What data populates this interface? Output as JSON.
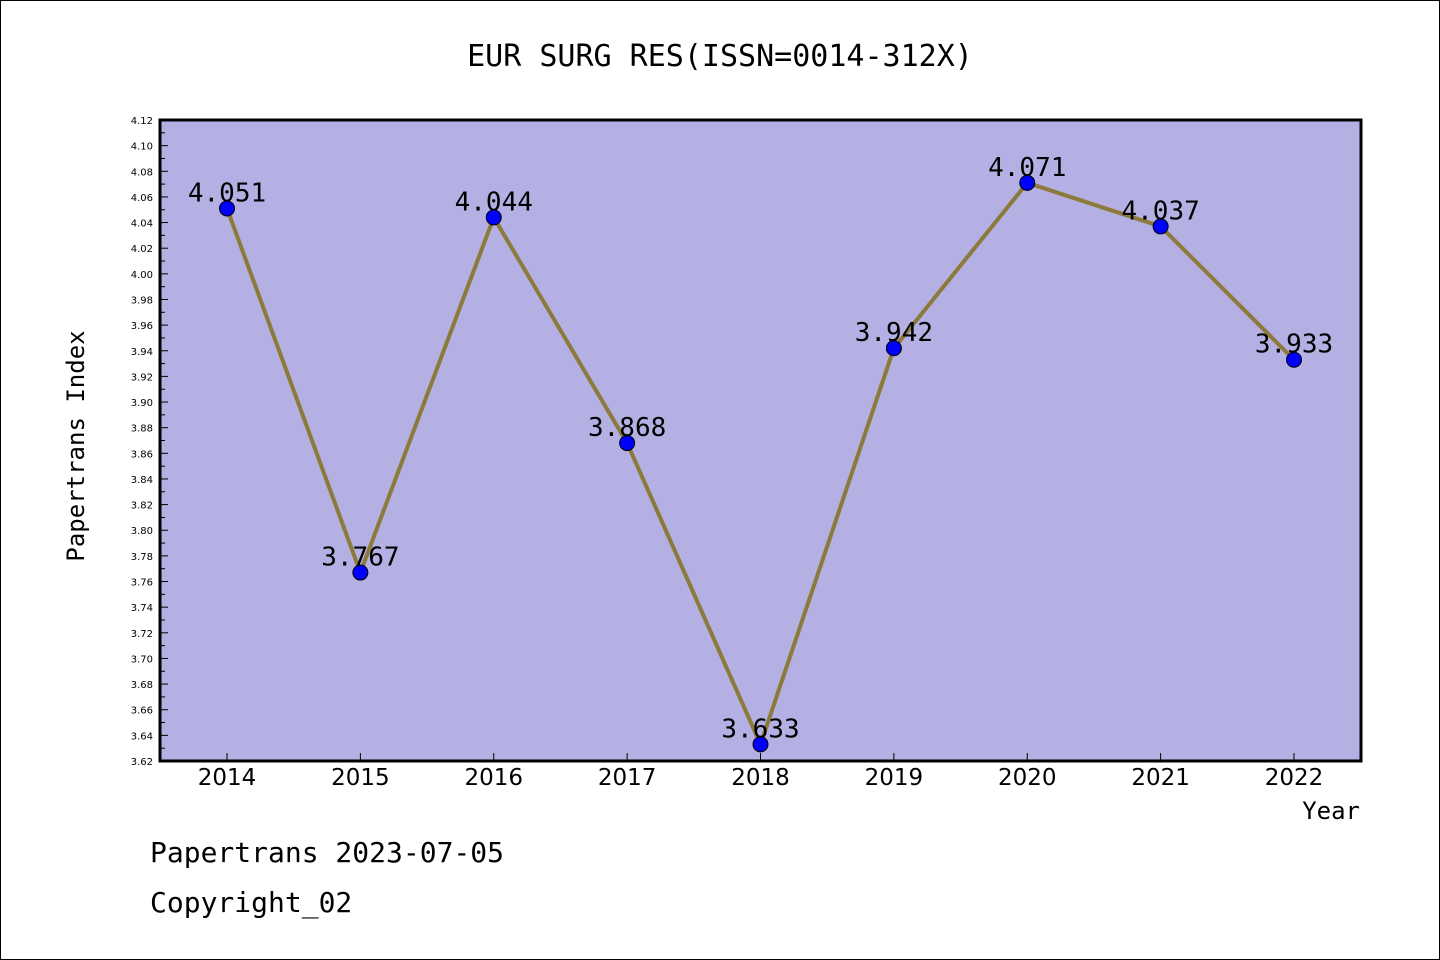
{
  "chart_data": {
    "type": "line",
    "title": "EUR SURG RES(ISSN=0014-312X)",
    "xlabel": "Year",
    "ylabel": "Papertrans Index",
    "categories": [
      "2014",
      "2015",
      "2016",
      "2017",
      "2018",
      "2019",
      "2020",
      "2021",
      "2022"
    ],
    "values": [
      4.051,
      3.767,
      4.044,
      3.868,
      3.633,
      3.942,
      4.071,
      4.037,
      3.933
    ],
    "data_labels": [
      "4.051",
      "3.767",
      "4.044",
      "3.868",
      "3.633",
      "3.942",
      "4.071",
      "4.037",
      "3.933"
    ],
    "ylim": [
      3.62,
      4.12
    ],
    "yticks": [
      "3.62",
      "3.64",
      "3.66",
      "3.68",
      "3.70",
      "3.72",
      "3.74",
      "3.76",
      "3.78",
      "3.80",
      "3.82",
      "3.84",
      "3.86",
      "3.88",
      "3.90",
      "3.92",
      "3.94",
      "3.96",
      "3.98",
      "4.00",
      "4.02",
      "4.04",
      "4.06",
      "4.08",
      "4.10",
      "4.12"
    ],
    "grid": false,
    "legend": "none",
    "colors": {
      "plot_background": "#b5b0e3",
      "line": "#8b7a3a",
      "marker": "#0000ff"
    }
  },
  "footer": {
    "line1": "Papertrans 2023-07-05",
    "line2": "Copyright_02"
  }
}
